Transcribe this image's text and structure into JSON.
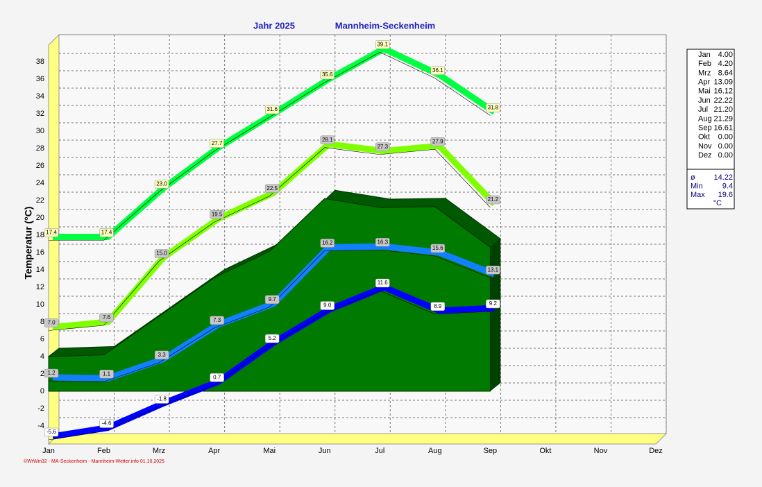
{
  "chart_data": {
    "type": "line",
    "title": "Jahr  2025",
    "subtitle": "Mannheim-Seckenheim",
    "ylabel": "Temperatur  (°C)",
    "footer": "©WrWin32 - MA-Seckenheim - Mannheim-Wetter.info  01.10.2025",
    "categories": [
      "Jan",
      "Feb",
      "Mrz",
      "Apr",
      "Mai",
      "Jun",
      "Jul",
      "Aug",
      "Sep",
      "Okt",
      "Nov",
      "Dez"
    ],
    "ylim": [
      -6,
      40
    ],
    "yticks": [
      -4,
      -2,
      0,
      2,
      4,
      6,
      8,
      10,
      12,
      14,
      16,
      18,
      20,
      22,
      24,
      26,
      28,
      30,
      32,
      34,
      36,
      38
    ],
    "grid": true,
    "series": [
      {
        "color": "#007a00",
        "area": true,
        "values": [
          4.0,
          4.2,
          8.64,
          13.09,
          16.12,
          22.22,
          21.2,
          21.29,
          16.61,
          null,
          null,
          null
        ]
      },
      {
        "color": "#00ff40",
        "values": [
          17.4,
          17.4,
          23.0,
          27.7,
          31.6,
          35.6,
          39.1,
          36.1,
          31.8,
          null,
          null,
          null
        ],
        "value_labels": [
          "17.4",
          "17.4",
          "23.0",
          "27.7",
          "31.6",
          "35.6",
          "39.1",
          "36.1",
          "31.8",
          null,
          null,
          null
        ]
      },
      {
        "color": "#80ff00",
        "values": [
          7.0,
          7.6,
          15.0,
          19.5,
          22.5,
          28.1,
          27.3,
          27.9,
          21.2,
          null,
          null,
          null
        ],
        "value_labels": [
          "7.0",
          "7.6",
          "15.0",
          "19.5",
          "22.5",
          "28.1",
          "27.3",
          "27.9",
          "21.2",
          null,
          null,
          null
        ]
      },
      {
        "color": "#1080ff",
        "values": [
          1.2,
          1.1,
          3.3,
          7.3,
          9.7,
          16.2,
          16.3,
          15.6,
          13.1,
          null,
          null,
          null
        ],
        "value_labels": [
          "1.2",
          "1.1",
          "3.3",
          "7.3",
          "9.7",
          "16.2",
          "16.3",
          "15.6",
          "13.1",
          null,
          null,
          null
        ]
      },
      {
        "color": "#0000ff",
        "values": [
          -5.6,
          -4.6,
          -1.8,
          0.7,
          5.2,
          9.0,
          11.6,
          8.9,
          9.2,
          null,
          null,
          null
        ],
        "value_labels": [
          "-5.6",
          "-4.6",
          "-1.8",
          "0.7",
          "5.2",
          "9.0",
          "11.6",
          "8.9",
          "9.2",
          null,
          null,
          null
        ]
      }
    ]
  },
  "summary": {
    "rows": [
      [
        "Jan",
        "4.00"
      ],
      [
        "Feb",
        "4.20"
      ],
      [
        "Mrz",
        "8.64"
      ],
      [
        "Apr",
        "13.09"
      ],
      [
        "Mai",
        "16.12"
      ],
      [
        "Jun",
        "22.22"
      ],
      [
        "Jul",
        "21.20"
      ],
      [
        "Aug",
        "21.29"
      ],
      [
        "Sep",
        "16.61"
      ],
      [
        "Okt",
        "0.00"
      ],
      [
        "Nov",
        "0.00"
      ],
      [
        "Dez",
        "0.00"
      ]
    ],
    "stats": [
      [
        "ø",
        "14.22"
      ],
      [
        "Min",
        "9.4"
      ],
      [
        "Max",
        "19.6"
      ]
    ],
    "unit": "°C"
  }
}
